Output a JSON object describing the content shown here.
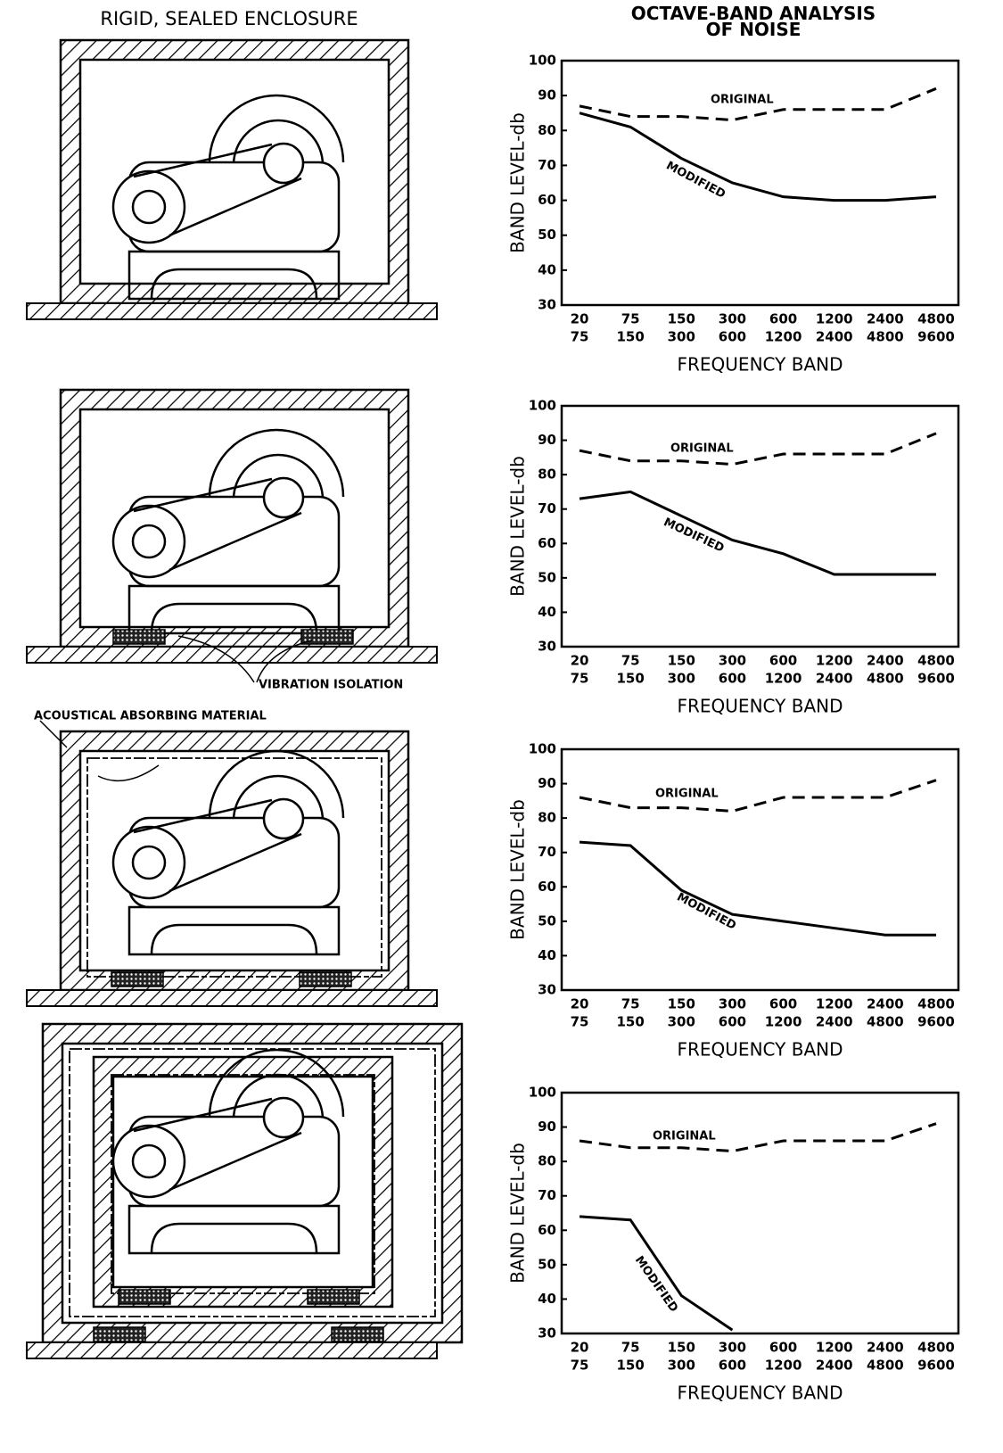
{
  "diagram": {
    "title": "RIGID, SEALED ENCLOSURE",
    "vibration_label": "VIBRATION ISOLATION",
    "absorbing_label": "ACOUSTICAL ABSORBING MATERIAL"
  },
  "chart_data": [
    {
      "type": "line",
      "title": "OCTAVE-BAND ANALYSIS OF NOISE",
      "ylabel": "BAND LEVEL-db",
      "xlabel": "FREQUENCY BAND",
      "categories": [
        [
          "20",
          "75"
        ],
        [
          "75",
          "150"
        ],
        [
          "150",
          "300"
        ],
        [
          "300",
          "600"
        ],
        [
          "600",
          "1200"
        ],
        [
          "1200",
          "2400"
        ],
        [
          "2400",
          "4800"
        ],
        [
          "4800",
          "9600"
        ]
      ],
      "ylim": [
        30,
        100
      ],
      "yticks": [
        30,
        40,
        50,
        60,
        70,
        80,
        90,
        100
      ],
      "series": [
        {
          "name": "ORIGINAL",
          "color": "#000",
          "style": "dashed",
          "values": [
            87,
            84,
            84,
            83,
            86,
            86,
            86,
            92
          ]
        },
        {
          "name": "MODIFIED",
          "color": "#000",
          "style": "solid",
          "values": [
            85,
            81,
            72,
            65,
            61,
            60,
            60,
            61
          ]
        }
      ]
    },
    {
      "type": "line",
      "ylabel": "BAND LEVEL-db",
      "xlabel": "FREQUENCY BAND",
      "categories": [
        [
          "20",
          "75"
        ],
        [
          "75",
          "150"
        ],
        [
          "150",
          "300"
        ],
        [
          "300",
          "600"
        ],
        [
          "600",
          "1200"
        ],
        [
          "1200",
          "2400"
        ],
        [
          "2400",
          "4800"
        ],
        [
          "4800",
          "9600"
        ]
      ],
      "ylim": [
        30,
        100
      ],
      "yticks": [
        30,
        40,
        50,
        60,
        70,
        80,
        90,
        100
      ],
      "series": [
        {
          "name": "ORIGINAL",
          "color": "#000",
          "style": "dashed",
          "values": [
            87,
            84,
            84,
            83,
            86,
            86,
            86,
            92
          ]
        },
        {
          "name": "MODIFIED",
          "color": "#000",
          "style": "solid",
          "values": [
            73,
            75,
            68,
            61,
            57,
            51,
            51,
            51
          ]
        }
      ]
    },
    {
      "type": "line",
      "ylabel": "BAND LEVEL-db",
      "xlabel": "FREQUENCY BAND",
      "categories": [
        [
          "20",
          "75"
        ],
        [
          "75",
          "150"
        ],
        [
          "150",
          "300"
        ],
        [
          "300",
          "600"
        ],
        [
          "600",
          "1200"
        ],
        [
          "1200",
          "2400"
        ],
        [
          "2400",
          "4800"
        ],
        [
          "4800",
          "9600"
        ]
      ],
      "ylim": [
        30,
        100
      ],
      "yticks": [
        30,
        40,
        50,
        60,
        70,
        80,
        90,
        100
      ],
      "series": [
        {
          "name": "ORIGINAL",
          "color": "#000",
          "style": "dashed",
          "values": [
            86,
            83,
            83,
            82,
            86,
            86,
            86,
            91
          ]
        },
        {
          "name": "MODIFIED",
          "color": "#000",
          "style": "solid",
          "values": [
            73,
            72,
            59,
            52,
            50,
            48,
            46,
            46
          ]
        }
      ]
    },
    {
      "type": "line",
      "ylabel": "BAND LEVEL-db",
      "xlabel": "FREQUENCY BAND",
      "categories": [
        [
          "20",
          "75"
        ],
        [
          "75",
          "150"
        ],
        [
          "150",
          "300"
        ],
        [
          "300",
          "600"
        ],
        [
          "600",
          "1200"
        ],
        [
          "1200",
          "2400"
        ],
        [
          "2400",
          "4800"
        ],
        [
          "4800",
          "9600"
        ]
      ],
      "ylim": [
        30,
        100
      ],
      "yticks": [
        30,
        40,
        50,
        60,
        70,
        80,
        90,
        100
      ],
      "series": [
        {
          "name": "ORIGINAL",
          "color": "#000",
          "style": "dashed",
          "values": [
            86,
            84,
            84,
            83,
            86,
            86,
            86,
            91
          ]
        },
        {
          "name": "MODIFIED",
          "color": "#000",
          "style": "solid",
          "values": [
            64,
            63,
            41,
            31,
            null,
            null,
            null,
            null
          ]
        }
      ]
    }
  ]
}
